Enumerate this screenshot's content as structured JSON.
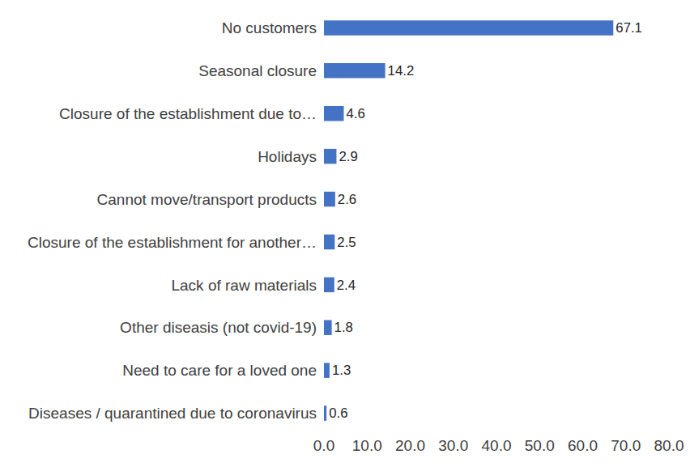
{
  "chart_data": {
    "type": "bar",
    "orientation": "horizontal",
    "categories": [
      "No customers",
      "Seasonal closure",
      "Closure of the establishment due to…",
      "Holidays",
      "Cannot move/transport products",
      "Closure of the establishment for another…",
      "Lack of raw materials",
      "Other diseasis (not covid-19)",
      "Need to care for a loved one",
      "Diseases / quarantined due to coronavirus"
    ],
    "values": [
      67.1,
      14.2,
      4.6,
      2.9,
      2.6,
      2.5,
      2.4,
      1.8,
      1.3,
      0.6
    ],
    "color": "#4472c4",
    "xlim": [
      0,
      80
    ],
    "xticks": [
      {
        "value": 0,
        "label": "0.0"
      },
      {
        "value": 10,
        "label": "10.0"
      },
      {
        "value": 20,
        "label": "20.0"
      },
      {
        "value": 30,
        "label": "30.0"
      },
      {
        "value": 40,
        "label": "40.0"
      },
      {
        "value": 50,
        "label": "50.0"
      },
      {
        "value": 60,
        "label": "60.0"
      },
      {
        "value": 70,
        "label": "70.0"
      },
      {
        "value": 80,
        "label": "80.0"
      }
    ],
    "grid": false,
    "data_labels": true
  }
}
